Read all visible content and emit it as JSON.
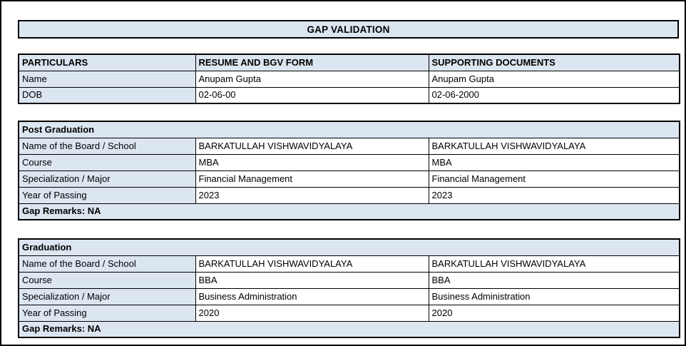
{
  "page": {
    "title": "GAP VALIDATION"
  },
  "colors": {
    "fill_blue": "#dce6f1",
    "border": "#000000",
    "text": "#000000",
    "background": "#ffffff"
  },
  "particulars_table": {
    "headers": [
      "PARTICULARS",
      "RESUME AND BGV FORM",
      "SUPPORTING DOCUMENTS"
    ],
    "rows": [
      {
        "label": "Name",
        "resume": "Anupam Gupta",
        "supporting": "Anupam Gupta"
      },
      {
        "label": "DOB",
        "resume": "02-06-00",
        "supporting": "02-06-2000"
      }
    ]
  },
  "sections": [
    {
      "title": "Post Graduation",
      "rows": [
        {
          "label": "Name of the Board / School",
          "resume": "BARKATULLAH VISHWAVIDYALAYA",
          "supporting": "BARKATULLAH VISHWAVIDYALAYA"
        },
        {
          "label": "Course",
          "resume": "MBA",
          "supporting": "MBA"
        },
        {
          "label": "Specialization / Major",
          "resume": "Financial Management",
          "supporting": "Financial Management"
        },
        {
          "label": "Year of Passing",
          "resume": "2023",
          "supporting": "2023"
        }
      ],
      "gap_remarks": "Gap Remarks: NA"
    },
    {
      "title": "Graduation",
      "rows": [
        {
          "label": "Name of the Board / School",
          "resume": "BARKATULLAH VISHWAVIDYALAYA",
          "supporting": "BARKATULLAH VISHWAVIDYALAYA"
        },
        {
          "label": "Course",
          "resume": "BBA",
          "supporting": "BBA"
        },
        {
          "label": "Specialization / Major",
          "resume": "Business Administration",
          "supporting": "Business Administration"
        },
        {
          "label": "Year of Passing",
          "resume": "2020",
          "supporting": "2020"
        }
      ],
      "gap_remarks": "Gap Remarks: NA"
    }
  ]
}
